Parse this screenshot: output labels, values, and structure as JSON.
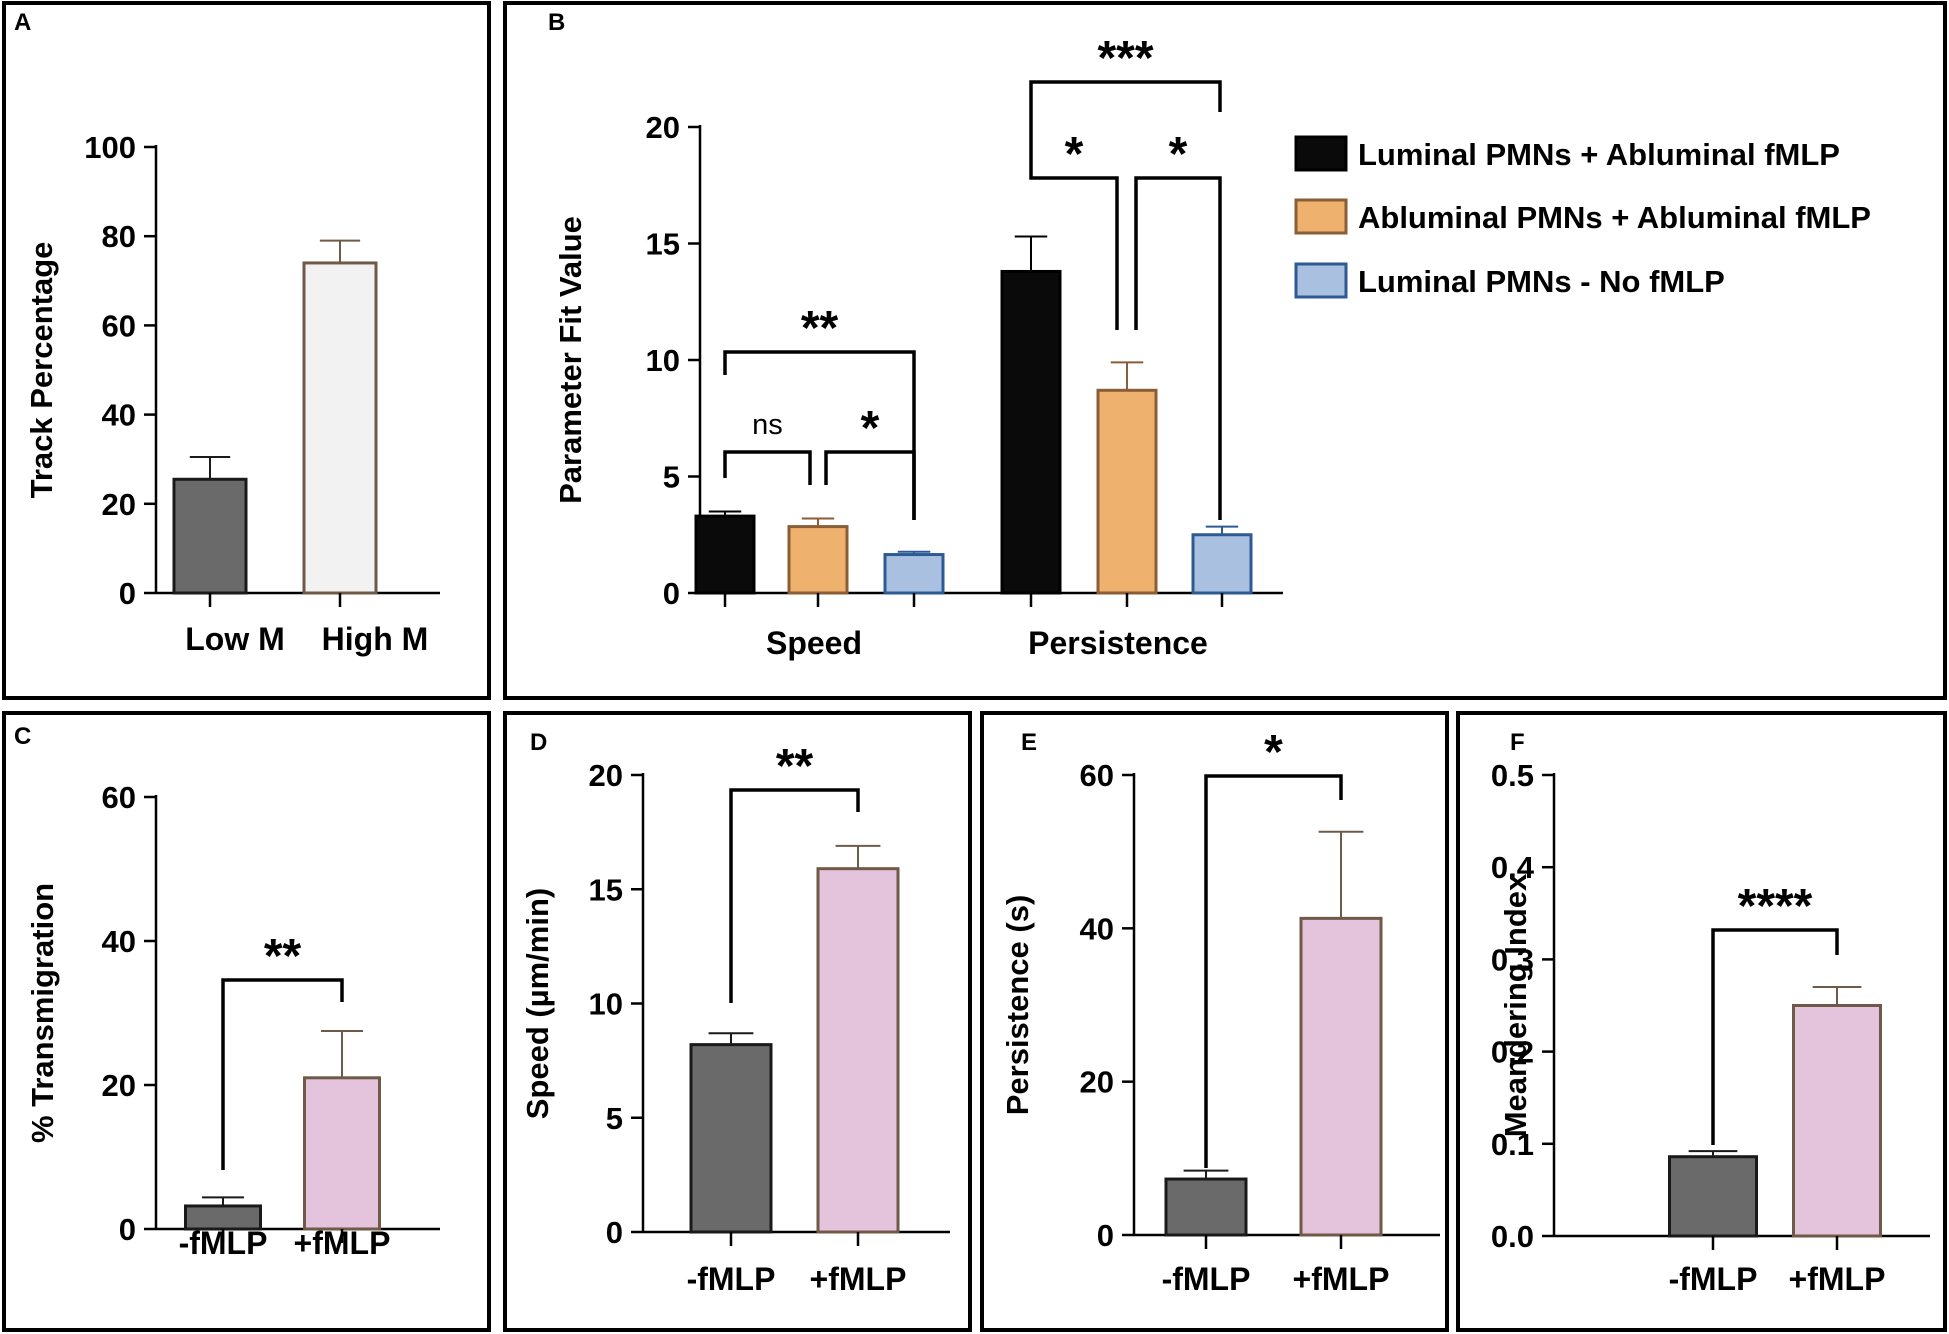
{
  "colors": {
    "frame": "#000000",
    "gray_bar": "#6a6a6a",
    "white_bar": "#f2f2f2",
    "black_bar": "#0a0a0a",
    "orange_bar": "#eeb16e",
    "blue_bar": "#a9c0e0",
    "pink_bar": "#e4c3dc",
    "orange_edge": "#8a5e37",
    "blue_edge": "#2d5a92",
    "pink_edge": "#6f5a48"
  },
  "chart_data": [
    {
      "id": "A",
      "panel_label": "A",
      "type": "bar",
      "title": "",
      "xlabel": "",
      "ylabel": "Track Percentage",
      "ylim": [
        0,
        100
      ],
      "yticks": [
        "0",
        "20",
        "40",
        "60",
        "80",
        "100"
      ],
      "categories": [
        "Low M",
        "High M"
      ],
      "values": [
        25.5,
        74
      ],
      "errors": [
        5,
        5
      ],
      "significance": []
    },
    {
      "id": "B",
      "panel_label": "B",
      "type": "bar",
      "title": "",
      "xlabel": "",
      "ylabel": "Parameter Fit Value",
      "ylim": [
        0,
        20
      ],
      "yticks": [
        "0",
        "5",
        "10",
        "15",
        "20"
      ],
      "categories": [
        "Speed",
        "Persistence"
      ],
      "series": [
        {
          "name": "Luminal PMNs + Abluminal fMLP",
          "values": [
            3.3,
            13.8
          ],
          "errors": [
            0.2,
            1.5
          ]
        },
        {
          "name": "Abluminal PMNs + Abluminal fMLP",
          "values": [
            2.85,
            8.7
          ],
          "errors": [
            0.35,
            1.2
          ]
        },
        {
          "name": "Luminal PMNs - No fMLP",
          "values": [
            1.65,
            2.5
          ],
          "errors": [
            0.12,
            0.35
          ]
        }
      ],
      "legend_position": "top-right",
      "significance": [
        {
          "label": "ns",
          "group": 0,
          "from": 0,
          "to": 1
        },
        {
          "label": "*",
          "group": 0,
          "from": 1,
          "to": 2
        },
        {
          "label": "**",
          "group": 0,
          "from": 0,
          "to": 2
        },
        {
          "label": "*",
          "group": 1,
          "from": 0,
          "to": 1
        },
        {
          "label": "*",
          "group": 1,
          "from": 1,
          "to": 2
        },
        {
          "label": "***",
          "group": 1,
          "from": 0,
          "to": 2
        }
      ]
    },
    {
      "id": "C",
      "panel_label": "C",
      "type": "bar",
      "title": "",
      "xlabel": "",
      "ylabel": "% Transmigration",
      "ylim": [
        0,
        60
      ],
      "yticks": [
        "0",
        "20",
        "40",
        "60"
      ],
      "categories": [
        "-fMLP",
        "+fMLP"
      ],
      "values": [
        3.2,
        21
      ],
      "errors": [
        1.2,
        6.5
      ],
      "significance": [
        {
          "label": "**",
          "from": 0,
          "to": 1
        }
      ]
    },
    {
      "id": "D",
      "panel_label": "D",
      "type": "bar",
      "title": "",
      "xlabel": "",
      "ylabel": "Speed (µm/min)",
      "ylim": [
        0,
        20
      ],
      "yticks": [
        "0",
        "5",
        "10",
        "15",
        "20"
      ],
      "categories": [
        "-fMLP",
        "+fMLP"
      ],
      "values": [
        8.2,
        15.9
      ],
      "errors": [
        0.5,
        1.0
      ],
      "significance": [
        {
          "label": "**",
          "from": 0,
          "to": 1
        }
      ]
    },
    {
      "id": "E",
      "panel_label": "E",
      "type": "bar",
      "title": "",
      "xlabel": "",
      "ylabel": "Persistence (s)",
      "ylim": [
        0,
        60
      ],
      "yticks": [
        "0",
        "20",
        "40",
        "60"
      ],
      "categories": [
        "-fMLP",
        "+fMLP"
      ],
      "values": [
        7.3,
        41.3
      ],
      "errors": [
        1.1,
        11.3
      ],
      "significance": [
        {
          "label": "*",
          "from": 0,
          "to": 1
        }
      ]
    },
    {
      "id": "F",
      "panel_label": "F",
      "type": "bar",
      "title": "",
      "xlabel": "",
      "ylabel": "Meandering Index",
      "ylim": [
        0,
        0.5
      ],
      "yticks": [
        "0.0",
        "0.1",
        "0.2",
        "0.3",
        "0.4",
        "0.5"
      ],
      "categories": [
        "-fMLP",
        "+fMLP"
      ],
      "values": [
        0.086,
        0.25
      ],
      "errors": [
        0.006,
        0.02
      ],
      "significance": [
        {
          "label": "****",
          "from": 0,
          "to": 1
        }
      ]
    }
  ]
}
